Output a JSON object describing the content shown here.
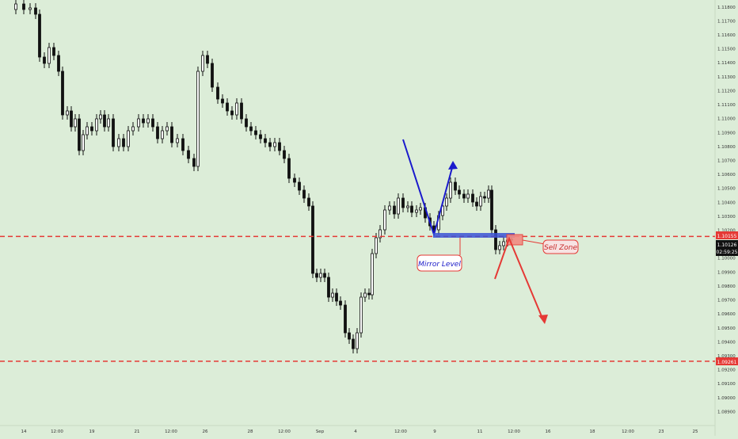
{
  "chart_data": {
    "type": "candlestick",
    "instrument_hint": "EURUSD-style price chart",
    "y_axis": {
      "min": 1.088,
      "max": 1.1185,
      "tick_step": 0.001,
      "tick_labels": [
        "1.08900",
        "1.09000",
        "1.09100",
        "1.09200",
        "1.09300",
        "1.09400",
        "1.09500",
        "1.09600",
        "1.09700",
        "1.09800",
        "1.09900",
        "1.10000",
        "1.10100",
        "1.10200",
        "1.10300",
        "1.10400",
        "1.10500",
        "1.10600",
        "1.10700",
        "1.10800",
        "1.10900",
        "1.11000",
        "1.11100",
        "1.11200",
        "1.11300",
        "1.11400",
        "1.11500",
        "1.11600",
        "1.11700",
        "1.11800"
      ]
    },
    "x_axis": {
      "tick_labels": [
        "14",
        "12:00",
        "19",
        "21",
        "12:00",
        "26",
        "28",
        "12:00",
        "Sep",
        "4",
        "12:00",
        "9",
        "11",
        "12:00",
        "16",
        "18",
        "12:00",
        "23",
        "25"
      ]
    },
    "horizontal_levels": [
      {
        "price": 1.10155,
        "label": "1.10155",
        "color": "#e53935",
        "style": "dashed"
      },
      {
        "price": 1.09261,
        "label": "1.09261",
        "color": "#e53935",
        "style": "dashed"
      }
    ],
    "price_labels": {
      "current_price": "1.10126",
      "countdown": "02:59:25"
    },
    "annotations": [
      {
        "text": "Mirror Level",
        "color": "#1a1ac8"
      },
      {
        "text": "Sell Zone",
        "color": "#c62828"
      }
    ],
    "candle_body_color": "#111111",
    "grid": false
  }
}
